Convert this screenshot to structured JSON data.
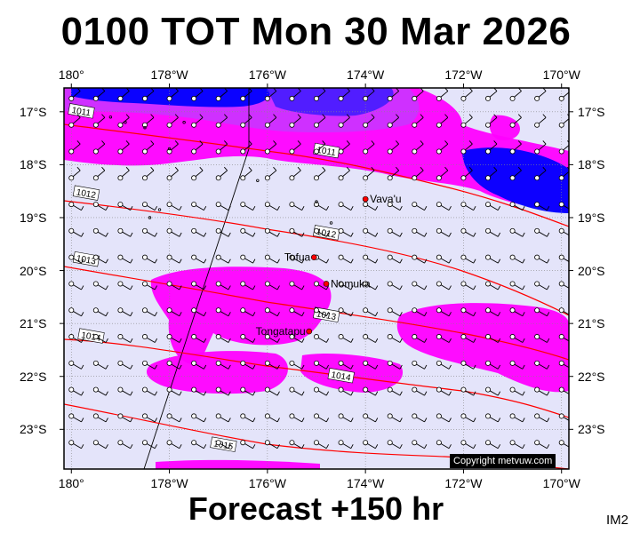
{
  "title": "0100 TOT Mon 30 Mar 2026",
  "footer": "Forecast +150 hr",
  "image_id": "IM2",
  "copyright": "Copyright metvuw.com",
  "longitude_ticks": [
    "180°",
    "178°W",
    "176°W",
    "174°W",
    "172°W",
    "170°W"
  ],
  "latitude_ticks": [
    "17°S",
    "18°S",
    "19°S",
    "20°S",
    "21°S",
    "22°S",
    "23°S"
  ],
  "places": [
    {
      "name": "Vava'u",
      "lon": -174.0,
      "lat": -18.65
    },
    {
      "name": "Tofua",
      "lon": -175.05,
      "lat": -19.75
    },
    {
      "name": "Nomuka",
      "lon": -174.8,
      "lat": -20.25
    },
    {
      "name": "Tongatapu",
      "lon": -175.15,
      "lat": -21.15
    }
  ],
  "isobars": [
    {
      "label": "1011",
      "label_pos": [
        -179.8,
        -17.0
      ],
      "label_pos2": [
        -174.8,
        -17.75
      ]
    },
    {
      "label": "1012",
      "label_pos": [
        -179.7,
        -18.55
      ],
      "label_pos2": [
        -174.8,
        -19.3
      ]
    },
    {
      "label": "1013",
      "label_pos": [
        -179.7,
        -19.8
      ],
      "label_pos2": [
        -174.8,
        -20.85
      ]
    },
    {
      "label": "1014",
      "label_pos": [
        -179.6,
        -21.25
      ],
      "label_pos2": [
        -174.5,
        -22.0
      ]
    },
    {
      "label": "1015",
      "label_pos": [
        -176.9,
        -23.3
      ]
    }
  ],
  "colors": {
    "background": "#e4e4fa",
    "precip_light": "#ff00ff",
    "precip_mid": "#cc33ff",
    "precip_heavy": "#0000ff",
    "isobar": "#ff0000",
    "place_dot": "#ff0000"
  }
}
